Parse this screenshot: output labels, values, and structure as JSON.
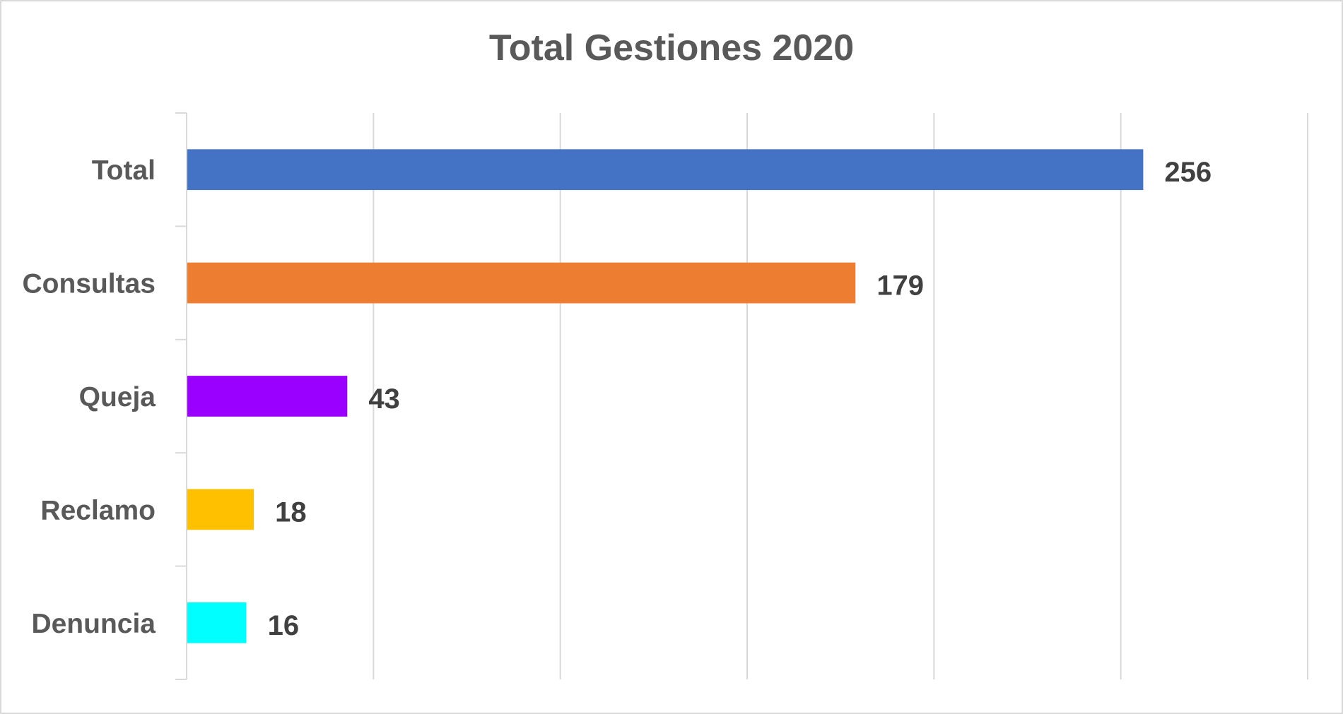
{
  "chart_data": {
    "type": "bar",
    "orientation": "horizontal",
    "title": "Total Gestiones 2020",
    "xlabel": "",
    "ylabel": "",
    "categories": [
      "Total",
      "Consultas",
      "Queja",
      "Reclamo",
      "Denuncia"
    ],
    "values": [
      256,
      179,
      43,
      18,
      16
    ],
    "colors": [
      "#4472C4",
      "#ED7D31",
      "#9900FF",
      "#FFC000",
      "#00FFFF"
    ],
    "xlim": [
      0,
      300
    ],
    "grid": true,
    "data_labels": true,
    "legend": "none"
  }
}
